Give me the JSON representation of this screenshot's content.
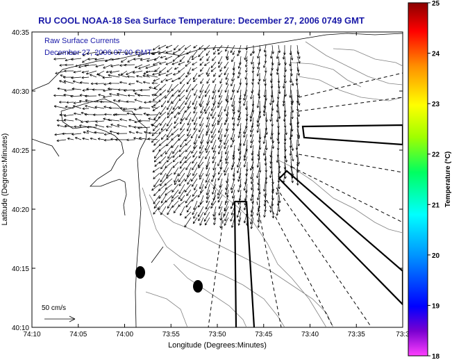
{
  "title": "RU COOL  NOAA-18  Sea Surface Temperature:  December 27, 2006 0749 GMT",
  "overlay_line1": "Raw Surface Currents",
  "overlay_line2": "December 27, 2006 07:00 GMT",
  "x_axis_label": "Longitude (Degrees:Minutes)",
  "y_axis_label": "Latitude (Degrees:Minutes)",
  "x_ticks": [
    "74:10",
    "74:05",
    "74:00",
    "73:55",
    "73:50",
    "73:45",
    "73:40",
    "73:35",
    "73:3"
  ],
  "y_ticks": [
    "40:35",
    "40:30",
    "40:25",
    "40:20",
    "40:15",
    "40:10"
  ],
  "scale_label": "50 cm/s",
  "colorbar": {
    "label": "Temperature (°C)",
    "min": 18,
    "max": 25,
    "ticks": [
      "25",
      "24",
      "23",
      "22",
      "21",
      "20",
      "19",
      "18"
    ]
  },
  "colors": {
    "title": "#1a1aa8",
    "lines": "#000000",
    "contours": "#808080"
  }
}
